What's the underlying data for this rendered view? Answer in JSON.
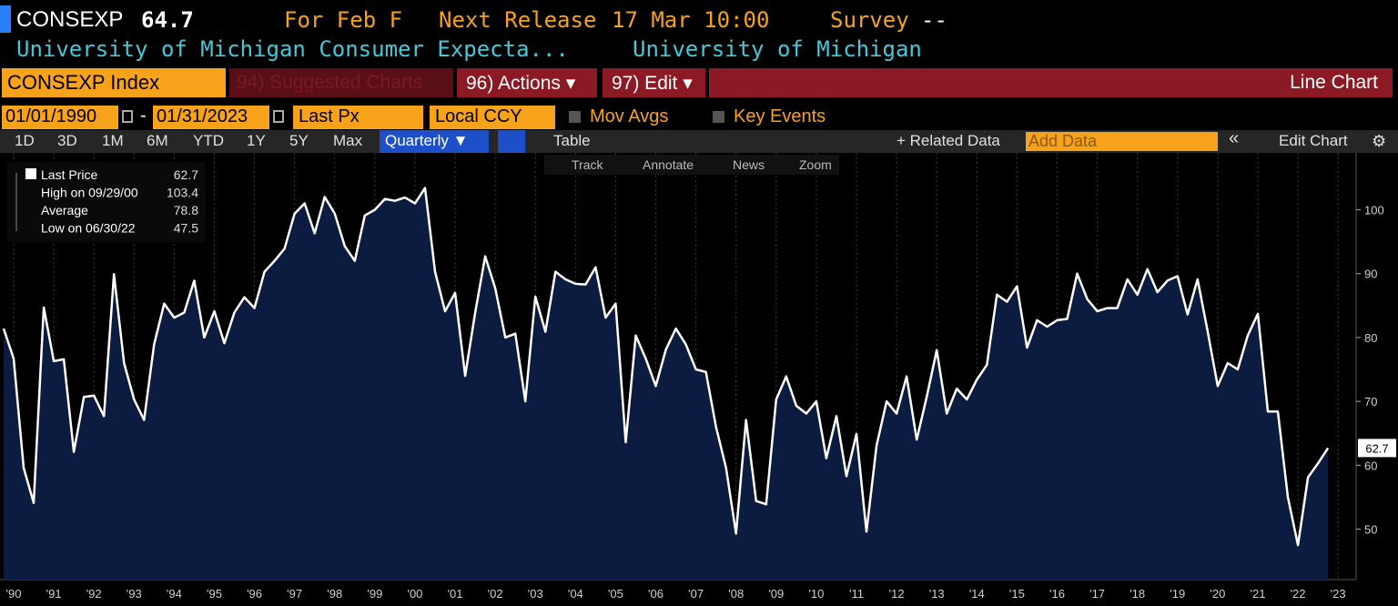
{
  "header": {
    "ticker": "CONSEXP",
    "value": 64.7,
    "period": "For Feb F",
    "next_release_label": "Next Release",
    "next_release": "17 Mar 10:00",
    "survey_label": "Survey",
    "survey": "--",
    "name": "University of Michigan Consumer Expecta...",
    "source": "University of Michigan"
  },
  "toolbar": {
    "security": "CONSEXP Index",
    "suggested": "94) Suggested Charts",
    "actions": "96) Actions ▾",
    "edit": "97) Edit ▾",
    "chart_type": "Line Chart"
  },
  "controls": {
    "start_date": "01/01/1990",
    "separator": "-",
    "end_date": "01/31/2023",
    "field": "Last Px",
    "currency": "Local CCY",
    "mov_avgs": "Mov Avgs",
    "key_events": "Key Events"
  },
  "periods": [
    "1D",
    "3D",
    "1M",
    "6M",
    "YTD",
    "1Y",
    "5Y",
    "Max"
  ],
  "frequency": "Quarterly ▼",
  "table": "Table",
  "related": "+ Related Data",
  "add_data": "Add Data",
  "collapse": "«",
  "edit_chart": "Edit Chart",
  "tools": [
    "Track",
    "Annotate",
    "News",
    "Zoom"
  ],
  "chart_data": {
    "type": "line",
    "color": "#ffffff",
    "fill": "#0b1c40",
    "legend": [
      {
        "label": "Last Price",
        "value": 62.7
      },
      {
        "label": "High on 09/29/00",
        "value": 103.4
      },
      {
        "label": "Average",
        "value": 78.8
      },
      {
        "label": "Low on 06/30/22",
        "value": 47.5
      }
    ],
    "x": [
      1989.75,
      1990,
      1990.25,
      1990.5,
      1990.75,
      1991,
      1991.25,
      1991.5,
      1991.75,
      1992,
      1992.25,
      1992.5,
      1992.75,
      1993,
      1993.25,
      1993.5,
      1993.75,
      1994,
      1994.25,
      1994.5,
      1994.75,
      1995,
      1995.25,
      1995.5,
      1995.75,
      1996,
      1996.25,
      1996.5,
      1996.75,
      1997,
      1997.25,
      1997.5,
      1997.75,
      1998,
      1998.25,
      1998.5,
      1998.75,
      1999,
      1999.25,
      1999.5,
      1999.75,
      2000,
      2000.25,
      2000.5,
      2000.75,
      2001,
      2001.25,
      2001.5,
      2001.75,
      2002,
      2002.25,
      2002.5,
      2002.75,
      2003,
      2003.25,
      2003.5,
      2003.75,
      2004,
      2004.25,
      2004.5,
      2004.75,
      2005,
      2005.25,
      2005.5,
      2005.75,
      2006,
      2006.25,
      2006.5,
      2006.75,
      2007,
      2007.25,
      2007.5,
      2007.75,
      2008,
      2008.25,
      2008.5,
      2008.75,
      2009,
      2009.25,
      2009.5,
      2009.75,
      2010,
      2010.25,
      2010.5,
      2010.75,
      2011,
      2011.25,
      2011.5,
      2011.75,
      2012,
      2012.25,
      2012.5,
      2012.75,
      2013,
      2013.25,
      2013.5,
      2013.75,
      2014,
      2014.25,
      2014.5,
      2014.75,
      2015,
      2015.25,
      2015.5,
      2015.75,
      2016,
      2016.25,
      2016.5,
      2016.75,
      2017,
      2017.25,
      2017.5,
      2017.75,
      2018,
      2018.25,
      2018.5,
      2018.75,
      2019,
      2019.25,
      2019.5,
      2019.75,
      2020,
      2020.25,
      2020.5,
      2020.75,
      2021,
      2021.25,
      2021.5,
      2021.75,
      2022,
      2022.25,
      2022.5,
      2022.75
    ],
    "values": [
      81.4,
      76.7,
      59.6,
      54.1,
      84.7,
      76.3,
      76.6,
      62.1,
      70.7,
      70.9,
      67.7,
      89.9,
      76,
      70.3,
      67.1,
      78.9,
      85.3,
      83.1,
      83.9,
      88.9,
      80,
      84.1,
      79.1,
      83.9,
      86.3,
      84.6,
      90.3,
      92,
      93.9,
      99.4,
      101,
      96.3,
      102,
      99.4,
      94.3,
      92,
      99.1,
      100,
      101.7,
      101.4,
      101.9,
      101,
      103.4,
      90.3,
      84.1,
      87,
      74,
      83.9,
      92.7,
      87.7,
      80,
      80.6,
      70,
      86.4,
      80.9,
      90.3,
      89.1,
      88.4,
      88.3,
      91,
      83.1,
      85.3,
      63.6,
      80.3,
      76.7,
      72.4,
      78.1,
      81.4,
      78.9,
      75,
      74.6,
      66,
      59.6,
      49.3,
      67.1,
      54.4,
      53.9,
      70.3,
      73.9,
      69.3,
      68.1,
      70,
      61.1,
      67.7,
      58.3,
      64.9,
      49.6,
      63.1,
      70,
      68.1,
      73.9,
      64,
      70.7,
      78,
      68.1,
      72,
      70.3,
      73.4,
      75.7,
      86.7,
      85.6,
      88,
      78.4,
      82.7,
      81.7,
      82.7,
      82.9,
      90,
      86,
      84.1,
      84.6,
      84.6,
      89.1,
      86.7,
      90.7,
      87.1,
      88.9,
      89.6,
      83.6,
      89.1,
      81,
      72.4,
      76,
      75,
      80.3,
      83.7,
      68.4,
      68.4,
      55,
      47.5,
      58.1,
      60.3,
      62.7
    ],
    "xlim": [
      1989.66,
      2023.45
    ],
    "xticks": [
      {
        "value": 1990,
        "label": "'90"
      },
      {
        "value": 1991,
        "label": "'91"
      },
      {
        "value": 1992,
        "label": "'92"
      },
      {
        "value": 1993,
        "label": "'93"
      },
      {
        "value": 1994,
        "label": "'94"
      },
      {
        "value": 1995,
        "label": "'95"
      },
      {
        "value": 1996,
        "label": "'96"
      },
      {
        "value": 1997,
        "label": "'97"
      },
      {
        "value": 1998,
        "label": "'98"
      },
      {
        "value": 1999,
        "label": "'99"
      },
      {
        "value": 2000,
        "label": "'00"
      },
      {
        "value": 2001,
        "label": "'01"
      },
      {
        "value": 2002,
        "label": "'02"
      },
      {
        "value": 2003,
        "label": "'03"
      },
      {
        "value": 2004,
        "label": "'04"
      },
      {
        "value": 2005,
        "label": "'05"
      },
      {
        "value": 2006,
        "label": "'06"
      },
      {
        "value": 2007,
        "label": "'07"
      },
      {
        "value": 2008,
        "label": "'08"
      },
      {
        "value": 2009,
        "label": "'09"
      },
      {
        "value": 2010,
        "label": "'10"
      },
      {
        "value": 2011,
        "label": "'11"
      },
      {
        "value": 2012,
        "label": "'12"
      },
      {
        "value": 2013,
        "label": "'13"
      },
      {
        "value": 2014,
        "label": "'14"
      },
      {
        "value": 2015,
        "label": "'15"
      },
      {
        "value": 2016,
        "label": "'16"
      },
      {
        "value": 2017,
        "label": "'17"
      },
      {
        "value": 2018,
        "label": "'18"
      },
      {
        "value": 2019,
        "label": "'19"
      },
      {
        "value": 2020,
        "label": "'20"
      },
      {
        "value": 2021,
        "label": "'21"
      },
      {
        "value": 2022,
        "label": "'22"
      },
      {
        "value": 2023,
        "label": "'23"
      }
    ],
    "ylim": [
      42.1,
      108.9
    ],
    "yticks": [
      50,
      60,
      70,
      80,
      90,
      100
    ],
    "grid": true
  }
}
